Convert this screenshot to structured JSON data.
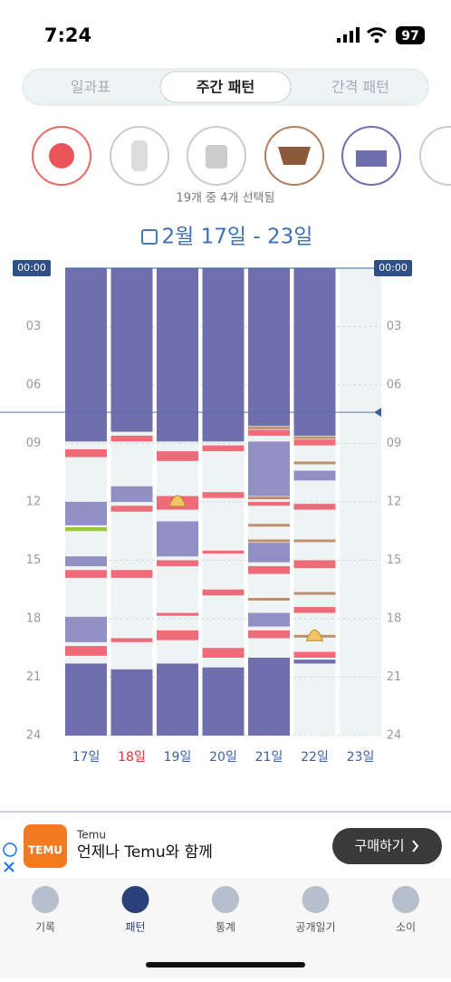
{
  "status": {
    "time": "7:24",
    "battery": "97"
  },
  "tabs": {
    "items": [
      "일과표",
      "주간 패턴",
      "간격 패턴"
    ],
    "active": 1
  },
  "selection_text": "19개 중 4개 선택됨",
  "date_range": "2월 17일 - 23일",
  "chart_data": {
    "type": "timeline",
    "ylim": [
      0,
      24
    ],
    "yticks": [
      {
        "value": 0,
        "label": "00:00"
      },
      {
        "value": 3,
        "label": "03"
      },
      {
        "value": 6,
        "label": "06"
      },
      {
        "value": 9,
        "label": "09"
      },
      {
        "value": 12,
        "label": "12"
      },
      {
        "value": 15,
        "label": "15"
      },
      {
        "value": 18,
        "label": "18"
      },
      {
        "value": 21,
        "label": "21"
      },
      {
        "value": 24,
        "label": "24"
      }
    ],
    "now": 7.4,
    "colors": {
      "sleep": "#6f6fae",
      "nap": "#9090c4",
      "feed": "#f06b7a",
      "diaper": "#bf8f6a",
      "other": "#9dc73f",
      "poop": "#f2c466"
    },
    "days": [
      {
        "label": "17일",
        "color": "#3b5fa8",
        "events": [
          {
            "type": "sleep",
            "start": 0,
            "end": 8.9
          },
          {
            "type": "feed",
            "start": 9.3,
            "end": 9.7
          },
          {
            "type": "nap",
            "start": 12,
            "end": 13.2
          },
          {
            "type": "other",
            "start": 13.3,
            "end": 13.5
          },
          {
            "type": "nap",
            "start": 14.8,
            "end": 15.3
          },
          {
            "type": "feed",
            "start": 15.5,
            "end": 15.9
          },
          {
            "type": "nap",
            "start": 17.9,
            "end": 19.2
          },
          {
            "type": "feed",
            "start": 19.4,
            "end": 19.9
          },
          {
            "type": "sleep",
            "start": 20.3,
            "end": 24
          }
        ]
      },
      {
        "label": "18일",
        "color": "#e0303a",
        "events": [
          {
            "type": "sleep",
            "start": 0,
            "end": 8.4
          },
          {
            "type": "feed",
            "start": 8.6,
            "end": 8.9
          },
          {
            "type": "nap",
            "start": 11.2,
            "end": 12
          },
          {
            "type": "feed",
            "start": 12.2,
            "end": 12.5
          },
          {
            "type": "feed",
            "start": 15.5,
            "end": 15.9
          },
          {
            "type": "feed",
            "start": 19,
            "end": 19.2
          },
          {
            "type": "sleep",
            "start": 20.6,
            "end": 24
          }
        ]
      },
      {
        "label": "19일",
        "color": "#3b5fa8",
        "events": [
          {
            "type": "sleep",
            "start": 0,
            "end": 8.9
          },
          {
            "type": "feed",
            "start": 9.4,
            "end": 9.9
          },
          {
            "type": "feed",
            "start": 11.7,
            "end": 12.4
          },
          {
            "type": "poop",
            "at": 11.9
          },
          {
            "type": "nap",
            "start": 13,
            "end": 14.8
          },
          {
            "type": "feed",
            "start": 15,
            "end": 15.3
          },
          {
            "type": "feed",
            "start": 17.7,
            "end": 17.85
          },
          {
            "type": "feed",
            "start": 18.6,
            "end": 19.1
          },
          {
            "type": "sleep",
            "start": 20.3,
            "end": 24
          }
        ]
      },
      {
        "label": "20일",
        "color": "#3b5fa8",
        "events": [
          {
            "type": "sleep",
            "start": 0,
            "end": 8.9
          },
          {
            "type": "feed",
            "start": 9.1,
            "end": 9.4
          },
          {
            "type": "feed",
            "start": 11.5,
            "end": 11.8
          },
          {
            "type": "feed",
            "start": 14.5,
            "end": 14.65
          },
          {
            "type": "feed",
            "start": 16.5,
            "end": 16.8
          },
          {
            "type": "feed",
            "start": 19.5,
            "end": 20
          },
          {
            "type": "sleep",
            "start": 20.5,
            "end": 24
          }
        ]
      },
      {
        "label": "21일",
        "color": "#3b5fa8",
        "events": [
          {
            "type": "sleep",
            "start": 0,
            "end": 8.1
          },
          {
            "type": "diaper",
            "at": 8.2
          },
          {
            "type": "feed",
            "start": 8.3,
            "end": 8.6
          },
          {
            "type": "nap",
            "start": 8.9,
            "end": 11.7
          },
          {
            "type": "diaper",
            "at": 11.8
          },
          {
            "type": "feed",
            "start": 12,
            "end": 12.2
          },
          {
            "type": "diaper",
            "at": 13.2
          },
          {
            "type": "diaper",
            "at": 14
          },
          {
            "type": "nap",
            "start": 14.1,
            "end": 15.1
          },
          {
            "type": "feed",
            "start": 15.3,
            "end": 15.7
          },
          {
            "type": "diaper",
            "at": 17
          },
          {
            "type": "nap",
            "start": 17.7,
            "end": 18.4
          },
          {
            "type": "feed",
            "start": 18.6,
            "end": 19
          },
          {
            "type": "sleep",
            "start": 20,
            "end": 24
          }
        ]
      },
      {
        "label": "22일",
        "color": "#3b5fa8",
        "events": [
          {
            "type": "sleep",
            "start": 0,
            "end": 8.6
          },
          {
            "type": "diaper",
            "at": 8.7
          },
          {
            "type": "feed",
            "start": 8.8,
            "end": 9.1
          },
          {
            "type": "diaper",
            "at": 10
          },
          {
            "type": "nap",
            "start": 10.4,
            "end": 10.9
          },
          {
            "type": "feed",
            "start": 12.1,
            "end": 12.4
          },
          {
            "type": "diaper",
            "at": 14
          },
          {
            "type": "feed",
            "start": 15,
            "end": 15.4
          },
          {
            "type": "diaper",
            "at": 16.7
          },
          {
            "type": "feed",
            "start": 17.4,
            "end": 17.7
          },
          {
            "type": "diaper",
            "at": 18.9
          },
          {
            "type": "poop",
            "at": 18.8
          },
          {
            "type": "feed",
            "start": 19.7,
            "end": 20
          },
          {
            "type": "sleep",
            "start": 20.1,
            "end": 20.3
          }
        ]
      },
      {
        "label": "23일",
        "color": "#3b5fa8",
        "events": []
      }
    ]
  },
  "ad": {
    "logo": "TEMU",
    "brand": "Temu",
    "text": "언제나 Temu와 함께",
    "button": "구매하기"
  },
  "nav": {
    "items": [
      "기록",
      "패턴",
      "통계",
      "공개일기",
      "소이"
    ],
    "active": 1
  }
}
